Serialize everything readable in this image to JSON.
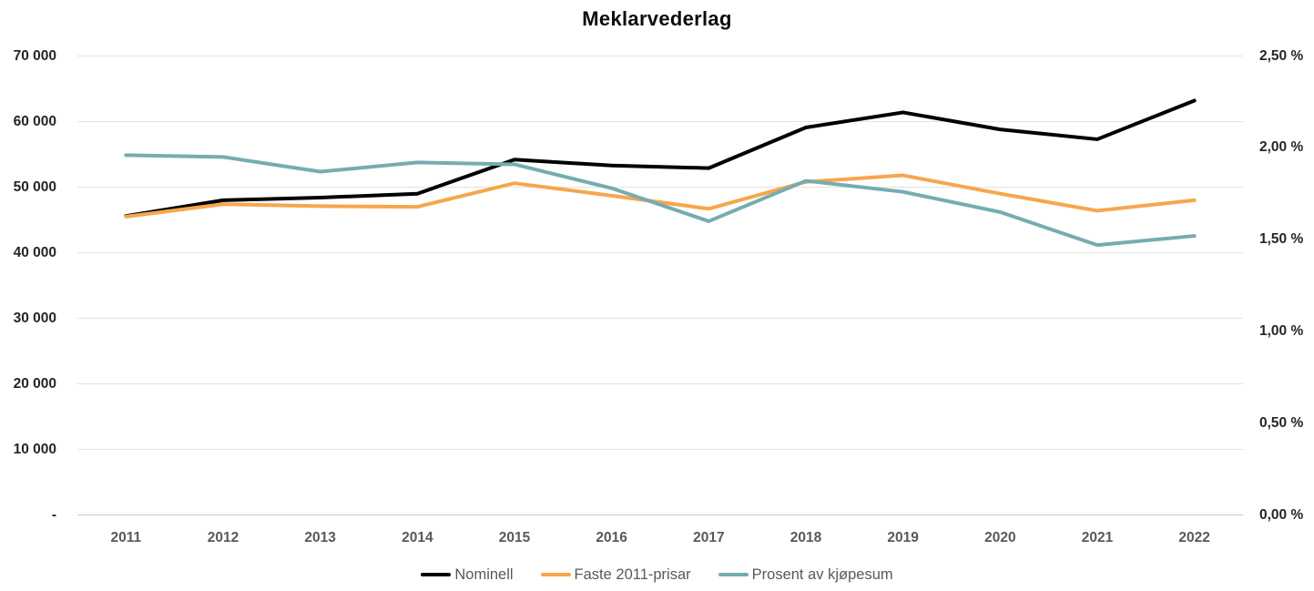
{
  "title": "Meklarvederlag",
  "chart_data": {
    "type": "line",
    "title": "Meklarvederlag",
    "categories": [
      "2011",
      "2012",
      "2013",
      "2014",
      "2015",
      "2016",
      "2017",
      "2018",
      "2019",
      "2020",
      "2021",
      "2022"
    ],
    "series": [
      {
        "name": "Nominell",
        "yaxis": "left",
        "color": "#000000",
        "values": [
          45600,
          48000,
          48400,
          49000,
          54200,
          53300,
          52900,
          59100,
          61400,
          58800,
          57300,
          63200
        ]
      },
      {
        "name": "Faste 2011-prisar",
        "yaxis": "left",
        "color": "#F7A64C",
        "values": [
          45500,
          47400,
          47100,
          47000,
          50600,
          48700,
          46700,
          50800,
          51800,
          49000,
          46400,
          48000
        ]
      },
      {
        "name": "Prosent av kjøpesum",
        "yaxis": "right",
        "color": "#75ACB2",
        "values": [
          1.96,
          1.95,
          1.87,
          1.92,
          1.91,
          1.78,
          1.6,
          1.82,
          1.76,
          1.65,
          1.47,
          1.52
        ]
      }
    ],
    "left_axis": {
      "range": [
        0,
        70000
      ],
      "tick_values": [
        70000,
        60000,
        50000,
        40000,
        30000,
        20000,
        10000,
        0
      ],
      "tick_labels": [
        "70 000",
        "60 000",
        "50 000",
        "40 000",
        "30 000",
        "20 000",
        "10 000",
        "-"
      ]
    },
    "right_axis": {
      "range": [
        0,
        2.5
      ],
      "tick_values": [
        2.5,
        2.0,
        1.5,
        1.0,
        0.5,
        0.0
      ],
      "tick_labels": [
        "2,50 %",
        "2,00 %",
        "1,50 %",
        "1,00 %",
        "0,50 %",
        "0,00 %"
      ]
    },
    "grid": true,
    "legend_position": "bottom",
    "colors": {
      "grid": "#E2E2E2",
      "axis_line": "#C9C9C9",
      "tick_text": "#262626",
      "year_text": "#595959",
      "legend_text": "#595959",
      "background": "#FFFFFF"
    }
  }
}
